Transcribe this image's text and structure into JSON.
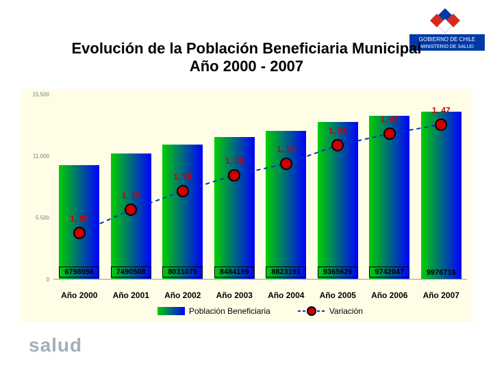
{
  "title": {
    "line1": "Evolución de la Población Beneficiaria Municipal",
    "line2": "Año 2000 - 2007",
    "fontsize": 22
  },
  "logo": {
    "flag_colors": [
      "#d52b1e",
      "#0039a6",
      "#ffffff",
      "#d52b1e",
      "#0039a6"
    ],
    "label_top": "GOBIERNO DE CHILE",
    "label_bottom": "MINISTERIO DE SALUD",
    "label_bg": "#0039a6",
    "label_color": "#ffffff"
  },
  "chart": {
    "type": "bar+line",
    "background_color": "#fffde6",
    "gridline_color": "#dddddd",
    "categories": [
      "Año 2000",
      "Año 2001",
      "Año 2002",
      "Año 2003",
      "Año 2004",
      "Año 2005",
      "Año 2006",
      "Año 2007"
    ],
    "bar_series": {
      "name": "Población Beneficiaria",
      "values": [
        6798956,
        7490508,
        8031075,
        8484199,
        8823191,
        9365626,
        9742047,
        9976716
      ],
      "ymin": 0,
      "ymax": 11000000,
      "ytick_labels": [
        "0",
        "5.500",
        "11.000",
        "15.500"
      ],
      "gradient_from": "#00d000",
      "gradient_to": "#0000ff",
      "value_font_color": "#000000",
      "value_border_last": false
    },
    "line_series": {
      "name": "Variación",
      "values": [
        1.0,
        1.1,
        1.18,
        1.25,
        1.3,
        1.38,
        1.43,
        1.47
      ],
      "display": [
        "1, 00",
        "1, 10",
        "1, 18",
        "1, 25",
        "1, 30",
        "1, 38",
        "1, 43",
        "1, 47"
      ],
      "ymin": 0.8,
      "ymax": 1.6,
      "point_fill": "#cc0000",
      "point_border": "#000000",
      "line_color": "#0033cc",
      "line_style": "dashed",
      "line_width": 2,
      "label_color": "#cc0000"
    },
    "legend": {
      "bar": "Población Beneficiaria",
      "line": "Variación"
    }
  },
  "footer": {
    "text": "salud",
    "color": "#a0b0b8",
    "fontsize": 28
  }
}
